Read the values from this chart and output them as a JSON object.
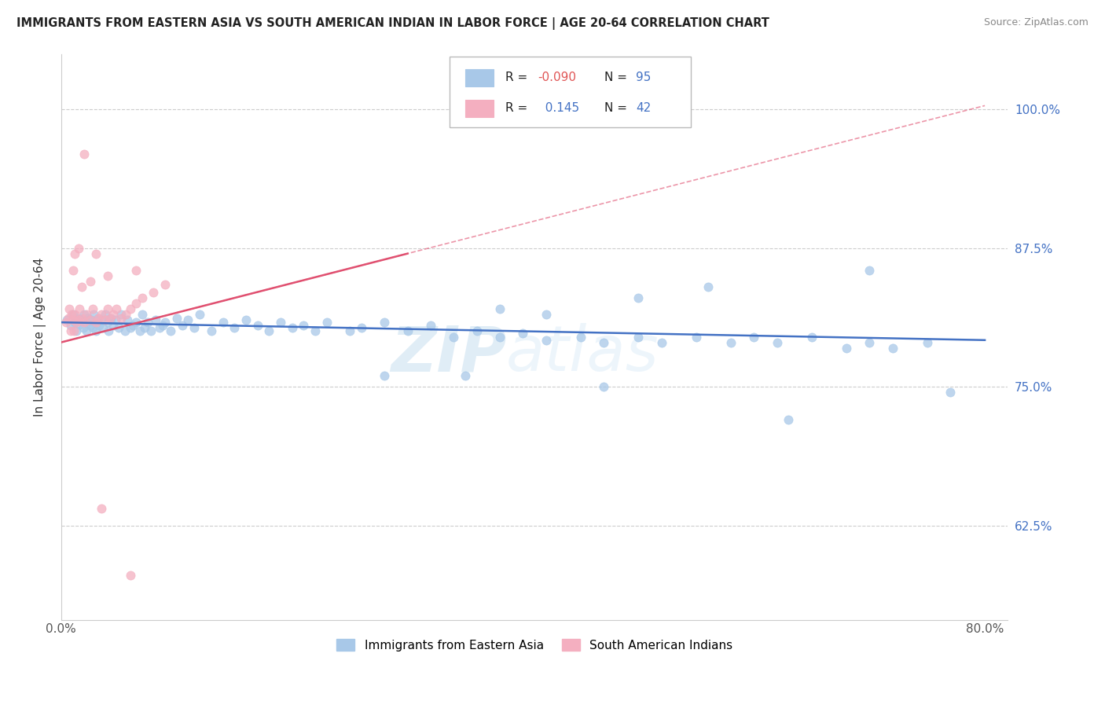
{
  "title": "IMMIGRANTS FROM EASTERN ASIA VS SOUTH AMERICAN INDIAN IN LABOR FORCE | AGE 20-64 CORRELATION CHART",
  "source": "Source: ZipAtlas.com",
  "ylabel": "In Labor Force | Age 20-64",
  "xlim": [
    0.0,
    0.82
  ],
  "ylim": [
    0.54,
    1.05
  ],
  "xtick_positions": [
    0.0,
    0.2,
    0.4,
    0.6,
    0.8
  ],
  "xticklabels": [
    "0.0%",
    "",
    "",
    "",
    "80.0%"
  ],
  "ytick_positions": [
    0.625,
    0.75,
    0.875,
    1.0
  ],
  "ytick_labels": [
    "62.5%",
    "75.0%",
    "87.5%",
    "100.0%"
  ],
  "legend_R_blue": "-0.090",
  "legend_N_blue": "95",
  "legend_R_pink": "0.145",
  "legend_N_pink": "42",
  "blue_color": "#a8c8e8",
  "pink_color": "#f4afc0",
  "trend_blue_color": "#4472c4",
  "trend_pink_color": "#e05070",
  "background_color": "#ffffff",
  "watermark_text": "ZIPatlas",
  "blue_x": [
    0.005,
    0.008,
    0.01,
    0.012,
    0.013,
    0.015,
    0.016,
    0.018,
    0.019,
    0.02,
    0.021,
    0.022,
    0.023,
    0.025,
    0.026,
    0.027,
    0.028,
    0.03,
    0.03,
    0.032,
    0.033,
    0.035,
    0.036,
    0.038,
    0.04,
    0.041,
    0.043,
    0.045,
    0.047,
    0.05,
    0.052,
    0.055,
    0.057,
    0.06,
    0.062,
    0.065,
    0.068,
    0.07,
    0.072,
    0.075,
    0.078,
    0.082,
    0.085,
    0.088,
    0.09,
    0.095,
    0.1,
    0.105,
    0.11,
    0.115,
    0.12,
    0.13,
    0.14,
    0.15,
    0.16,
    0.17,
    0.18,
    0.19,
    0.2,
    0.21,
    0.22,
    0.23,
    0.25,
    0.26,
    0.28,
    0.3,
    0.32,
    0.34,
    0.36,
    0.38,
    0.4,
    0.42,
    0.45,
    0.47,
    0.5,
    0.52,
    0.55,
    0.58,
    0.6,
    0.62,
    0.65,
    0.68,
    0.7,
    0.72,
    0.75,
    0.38,
    0.42,
    0.5,
    0.56,
    0.7,
    0.35,
    0.28,
    0.47,
    0.63,
    0.77
  ],
  "blue_y": [
    0.81,
    0.805,
    0.815,
    0.808,
    0.8,
    0.812,
    0.806,
    0.81,
    0.803,
    0.815,
    0.808,
    0.8,
    0.812,
    0.805,
    0.81,
    0.803,
    0.815,
    0.808,
    0.8,
    0.812,
    0.805,
    0.81,
    0.803,
    0.815,
    0.808,
    0.8,
    0.812,
    0.805,
    0.81,
    0.803,
    0.815,
    0.8,
    0.81,
    0.803,
    0.805,
    0.808,
    0.8,
    0.815,
    0.803,
    0.808,
    0.8,
    0.81,
    0.803,
    0.805,
    0.808,
    0.8,
    0.812,
    0.805,
    0.81,
    0.803,
    0.815,
    0.8,
    0.808,
    0.803,
    0.81,
    0.805,
    0.8,
    0.808,
    0.803,
    0.805,
    0.8,
    0.808,
    0.8,
    0.803,
    0.808,
    0.8,
    0.805,
    0.795,
    0.8,
    0.795,
    0.798,
    0.792,
    0.795,
    0.79,
    0.795,
    0.79,
    0.795,
    0.79,
    0.795,
    0.79,
    0.795,
    0.785,
    0.79,
    0.785,
    0.79,
    0.82,
    0.815,
    0.83,
    0.84,
    0.855,
    0.76,
    0.76,
    0.75,
    0.72,
    0.745
  ],
  "pink_x": [
    0.004,
    0.006,
    0.007,
    0.008,
    0.009,
    0.01,
    0.011,
    0.012,
    0.013,
    0.015,
    0.016,
    0.018,
    0.02,
    0.022,
    0.025,
    0.027,
    0.03,
    0.032,
    0.035,
    0.038,
    0.04,
    0.042,
    0.045,
    0.048,
    0.052,
    0.056,
    0.06,
    0.065,
    0.07,
    0.08,
    0.09,
    0.01,
    0.012,
    0.015,
    0.018,
    0.025,
    0.04,
    0.065,
    0.02,
    0.03,
    0.035,
    0.06
  ],
  "pink_y": [
    0.808,
    0.812,
    0.82,
    0.8,
    0.815,
    0.81,
    0.8,
    0.815,
    0.808,
    0.81,
    0.82,
    0.812,
    0.808,
    0.815,
    0.81,
    0.82,
    0.808,
    0.812,
    0.815,
    0.81,
    0.82,
    0.812,
    0.815,
    0.82,
    0.812,
    0.815,
    0.82,
    0.825,
    0.83,
    0.835,
    0.842,
    0.855,
    0.87,
    0.875,
    0.84,
    0.845,
    0.85,
    0.855,
    0.96,
    0.87,
    0.64,
    0.58
  ]
}
